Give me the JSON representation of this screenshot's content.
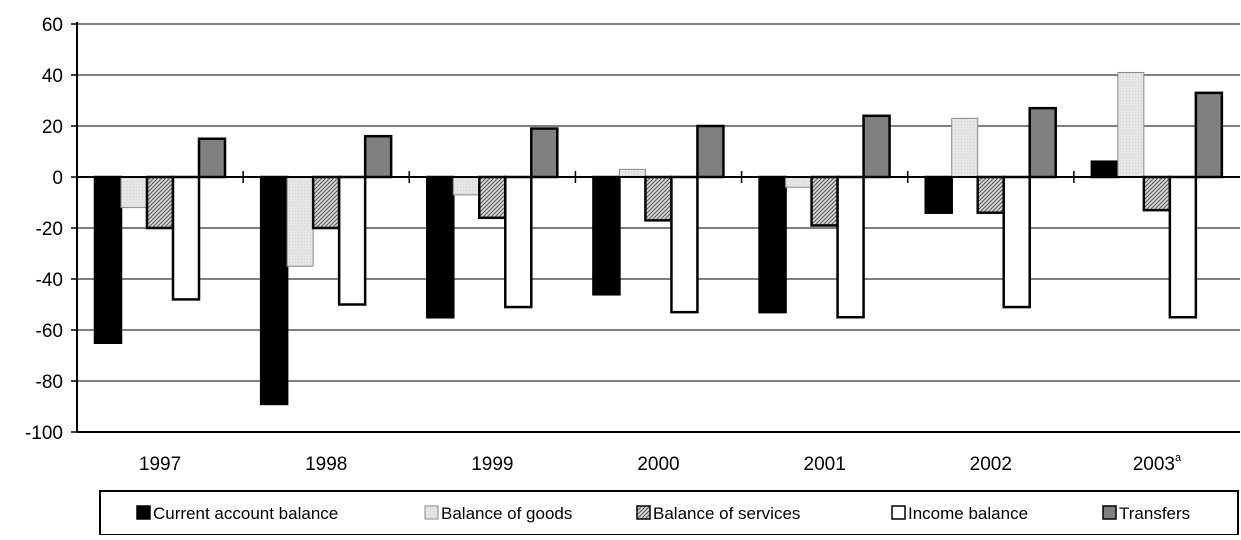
{
  "chart_data": {
    "type": "bar",
    "title": "",
    "xlabel": "",
    "ylabel": "",
    "ylim": [
      -100,
      60
    ],
    "yticks": [
      60,
      40,
      20,
      0,
      -20,
      -40,
      -60,
      -80,
      -100
    ],
    "grid": true,
    "legend_position": "bottom",
    "categories": [
      "1997",
      "1998",
      "1999",
      "2000",
      "2001",
      "2002",
      "2003"
    ],
    "category_superscripts": [
      "",
      "",
      "",
      "",
      "",
      "",
      "a"
    ],
    "series": [
      {
        "name": "Current account balance",
        "values": [
          -65,
          -89,
          -55,
          -46,
          -53,
          -14,
          6
        ],
        "color": "#000000",
        "pattern": "solid"
      },
      {
        "name": "Balance of goods",
        "values": [
          -12,
          -35,
          -7,
          3,
          -4,
          23,
          41
        ],
        "color": "#e0e0e0",
        "pattern": "dotted-light"
      },
      {
        "name": "Balance of services",
        "values": [
          -20,
          -20,
          -16,
          -17,
          -19,
          -14,
          -13
        ],
        "color": "#aaaaaa",
        "pattern": "diagonal-hatch"
      },
      {
        "name": "Income balance",
        "values": [
          -48,
          -50,
          -51,
          -53,
          -55,
          -51,
          -55
        ],
        "color": "#ffffff",
        "pattern": "solid"
      },
      {
        "name": "Transfers",
        "values": [
          15,
          16,
          19,
          20,
          24,
          27,
          33
        ],
        "color": "#808080",
        "pattern": "solid"
      }
    ]
  }
}
